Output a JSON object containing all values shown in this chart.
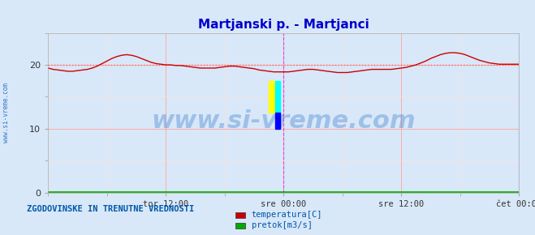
{
  "title": "Martjanski p. - Martjanci",
  "title_color": "#0000cc",
  "title_fontsize": 11,
  "bg_color": "#d8e8f8",
  "plot_bg_color": "#d8e8f8",
  "fig_bg_color": "#d8e8f8",
  "xmin": 0,
  "xmax": 576,
  "ymin": 0,
  "ymax": 25,
  "yticks": [
    0,
    10,
    20
  ],
  "xtick_labels": [
    "tor 12:00",
    "sre 00:00",
    "sre 12:00",
    "čet 00:00"
  ],
  "xtick_positions": [
    144,
    288,
    432,
    576
  ],
  "grid_color": "#ffaaaa",
  "grid_minor_color": "#ffdddd",
  "dotted_line_value": 20,
  "dotted_line_color": "#ff6666",
  "vline_positions": [
    288,
    576
  ],
  "vline_color": "#dd44dd",
  "red_line_color": "#cc0000",
  "green_line_color": "#00aa00",
  "watermark_text": "www.si-vreme.com",
  "watermark_color": "#3377cc",
  "watermark_alpha": 0.35,
  "watermark_fontsize": 22,
  "sidebar_text": "www.si-vreme.com",
  "sidebar_color": "#3377cc",
  "legend_title": "ZGODOVINSKE IN TRENUTNE VREDNOSTI",
  "legend_title_color": "#0055aa",
  "legend_items": [
    "temperatura[C]",
    "pretok[m3/s]"
  ],
  "legend_colors": [
    "#cc0000",
    "#00aa00"
  ],
  "yaxis_label_color": "#555555",
  "temp_data_x": [
    0,
    6,
    12,
    18,
    24,
    30,
    36,
    42,
    48,
    54,
    60,
    66,
    72,
    78,
    84,
    90,
    96,
    102,
    108,
    114,
    120,
    126,
    132,
    138,
    144,
    150,
    156,
    162,
    168,
    174,
    180,
    186,
    192,
    198,
    204,
    210,
    216,
    222,
    228,
    234,
    240,
    246,
    252,
    258,
    264,
    270,
    276,
    282,
    288,
    294,
    300,
    306,
    312,
    318,
    324,
    330,
    336,
    342,
    348,
    354,
    360,
    366,
    372,
    378,
    384,
    390,
    396,
    402,
    408,
    414,
    420,
    426,
    432,
    438,
    444,
    450,
    456,
    462,
    468,
    474,
    480,
    486,
    492,
    498,
    504,
    510,
    516,
    522,
    528,
    534,
    540,
    546,
    552,
    558,
    564,
    570,
    576
  ],
  "temp_data_y": [
    19.5,
    19.3,
    19.2,
    19.1,
    19.0,
    19.0,
    19.1,
    19.2,
    19.3,
    19.5,
    19.8,
    20.2,
    20.6,
    21.0,
    21.3,
    21.5,
    21.6,
    21.5,
    21.3,
    21.0,
    20.7,
    20.4,
    20.2,
    20.1,
    20.0,
    20.0,
    19.9,
    19.9,
    19.8,
    19.7,
    19.6,
    19.5,
    19.5,
    19.5,
    19.5,
    19.6,
    19.7,
    19.8,
    19.8,
    19.7,
    19.6,
    19.5,
    19.4,
    19.2,
    19.1,
    19.0,
    18.9,
    18.9,
    18.9,
    18.9,
    19.0,
    19.1,
    19.2,
    19.3,
    19.3,
    19.2,
    19.1,
    19.0,
    18.9,
    18.8,
    18.8,
    18.8,
    18.9,
    19.0,
    19.1,
    19.2,
    19.3,
    19.3,
    19.3,
    19.3,
    19.3,
    19.4,
    19.5,
    19.6,
    19.8,
    20.0,
    20.3,
    20.6,
    21.0,
    21.3,
    21.6,
    21.8,
    21.9,
    21.9,
    21.8,
    21.6,
    21.3,
    21.0,
    20.7,
    20.5,
    20.3,
    20.2,
    20.1,
    20.1,
    20.1,
    20.1,
    20.1
  ],
  "flow_data_y_value": 0.05
}
